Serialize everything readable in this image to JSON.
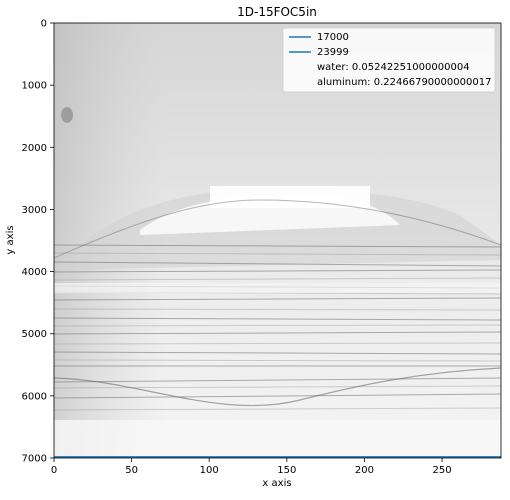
{
  "chart_data": {
    "type": "heatmap",
    "title": "1D-15FOC5in",
    "xlabel": "x axis",
    "ylabel": "y axis",
    "xlim": [
      0,
      288
    ],
    "ylim": [
      7000,
      0
    ],
    "x_ticks": [
      0,
      50,
      100,
      150,
      200,
      250
    ],
    "y_ticks": [
      0,
      1000,
      2000,
      3000,
      4000,
      5000,
      6000,
      7000
    ],
    "colormap": "grayscale",
    "series": [
      {
        "name": "17000",
        "color": "#1f77b4",
        "y": 7000
      },
      {
        "name": "23999",
        "color": "#1f77b4",
        "y": 7000
      }
    ],
    "legend": {
      "placement": "top-right",
      "entries": [
        "17000",
        "23999",
        "water: 0.05242251000000004",
        "aluminum: 0.22466790000000017"
      ]
    }
  }
}
